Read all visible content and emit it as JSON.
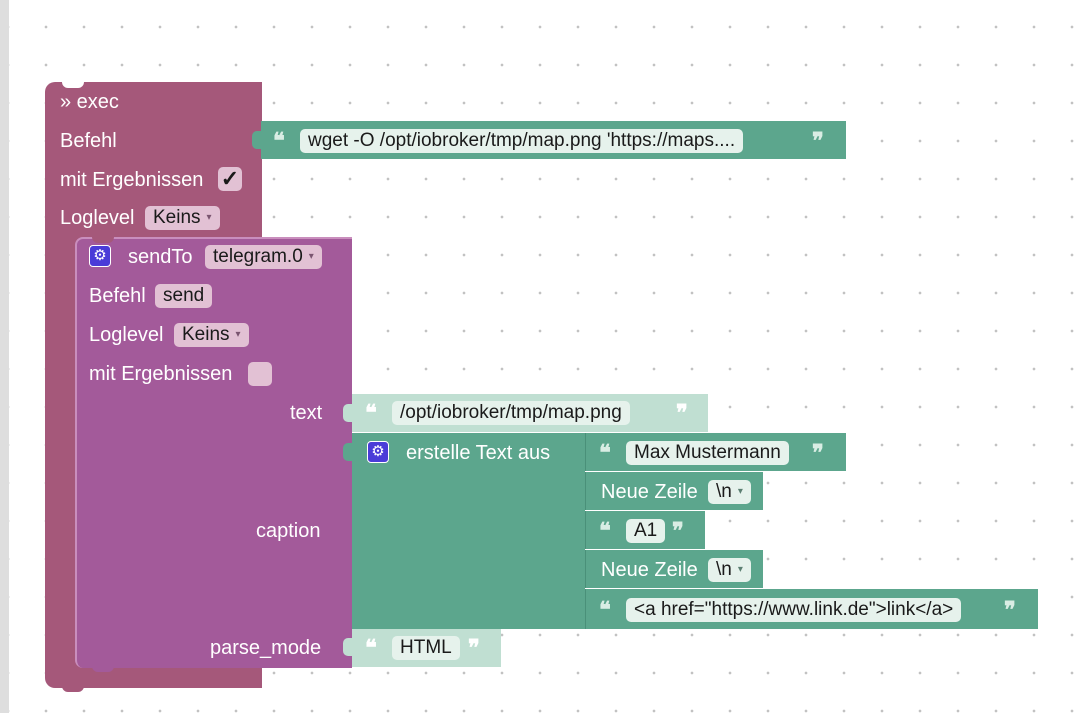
{
  "exec": {
    "title": "» exec",
    "befehl_label": "Befehl",
    "command_value": "wget -O /opt/iobroker/tmp/map.png 'https://maps....",
    "mit_ergebnissen_label": "mit Ergebnissen",
    "mit_ergebnissen_checked": "✓",
    "loglevel_label": "Loglevel",
    "loglevel_value": "Keins"
  },
  "sendto": {
    "title": "sendTo",
    "instance_value": "telegram.0",
    "befehl_label": "Befehl",
    "befehl_value": "send",
    "loglevel_label": "Loglevel",
    "loglevel_value": "Keins",
    "mit_ergebnissen_label": "mit Ergebnissen",
    "text_label": "text",
    "text_value": "/opt/iobroker/tmp/map.png",
    "caption_label": "caption",
    "parse_mode_label": "parse_mode",
    "parse_mode_value": "HTML"
  },
  "text_join": {
    "title": "erstelle Text aus",
    "item1_value": "Max Mustermann",
    "newline1_label": "Neue Zeile",
    "newline1_value": "\\n",
    "item3_value": "A1",
    "newline2_label": "Neue Zeile",
    "newline2_value": "\\n",
    "item5_value": "<a href=\"https://www.link.de\">link</a>"
  },
  "glyphs": {
    "open_quote": "❝",
    "close_quote": "❞",
    "gear": "⚙",
    "dropdown_arrow": "▾"
  },
  "colors": {
    "exec_block": "#a5587a",
    "sendto_block": "#a35a9a",
    "text_block": "#5ca68d",
    "text_block_light": "#c0dfd2",
    "field_bg": "#e2c1d4",
    "text_field_bg": "#e6f2ec",
    "gear_bg": "#4a3cd8"
  }
}
